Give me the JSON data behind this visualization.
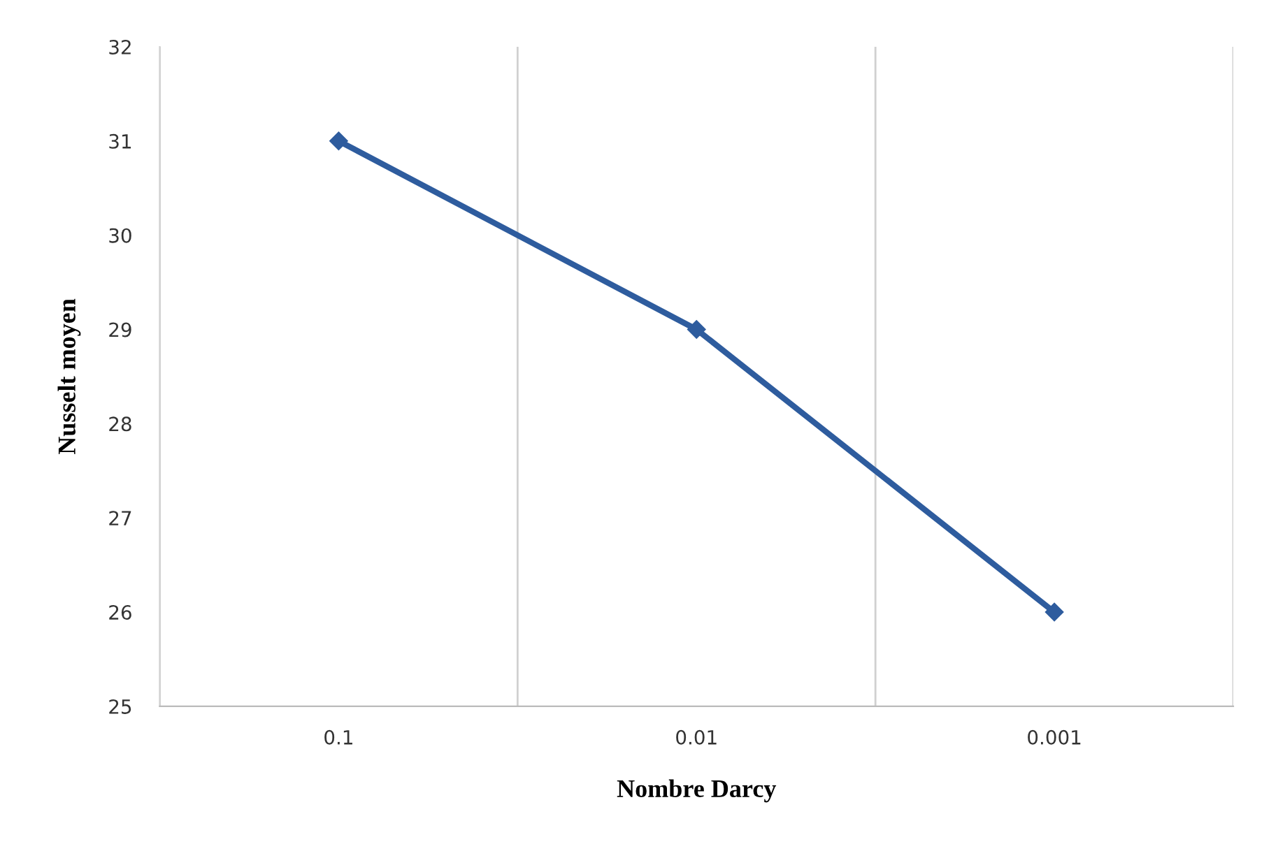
{
  "chart_data": {
    "type": "line",
    "xlabel": "Nombre Darcy",
    "ylabel": "Nusselt moyen",
    "categories": [
      "0.1",
      "0.01",
      "0.001"
    ],
    "series": [
      {
        "color": "#2e5c9e",
        "values": [
          31,
          29,
          26
        ]
      }
    ],
    "ylim": [
      25,
      32
    ],
    "yticks": [
      25,
      26,
      27,
      28,
      29,
      30,
      31,
      32
    ],
    "grid": "x",
    "marker": "diamond",
    "line_style": "solid",
    "legend": false
  }
}
